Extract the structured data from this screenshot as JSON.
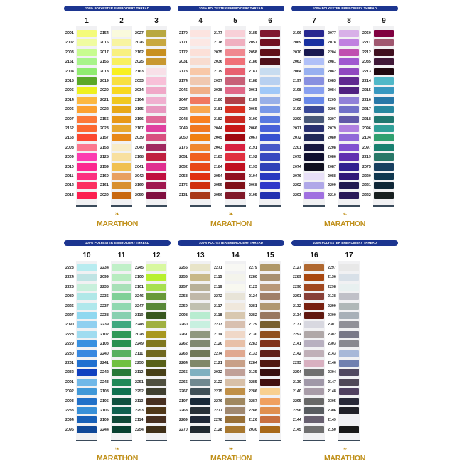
{
  "banner_text": "100% POLYESTER EMBROIDERY THREAD",
  "logo_text": "MARATHON",
  "cards": [
    {
      "columns": [
        {
          "number": "1",
          "codes": [
            "2001",
            "2002",
            "2003",
            "2151",
            "2004",
            "2015",
            "2005",
            "2014",
            "2006",
            "2007",
            "2152",
            "2153",
            "2008",
            "2009",
            "2010",
            "2011",
            "2012",
            "2013"
          ],
          "colors": [
            "#f4fb7a",
            "#f0fca0",
            "#c8fc90",
            "#a8f48a",
            "#90ec70",
            "#5aa828",
            "#eef020",
            "#fcb840",
            "#fca030",
            "#fc7838",
            "#fc6830",
            "#fc4830",
            "#fc7890",
            "#fc3cb0",
            "#fc2890",
            "#fc3080",
            "#fc3060",
            "#fc2050"
          ]
        },
        {
          "number": "2",
          "codes": [
            "2154",
            "2016",
            "2017",
            "2155",
            "2018",
            "2019",
            "2020",
            "2021",
            "2022",
            "2156",
            "2023",
            "2157",
            "2158",
            "2125",
            "2159",
            "2160",
            "2161",
            "2029"
          ],
          "colors": [
            "#fafadc",
            "#f8f4a0",
            "#f8f080",
            "#f8f060",
            "#f8f020",
            "#f8e040",
            "#f8d820",
            "#f0c820",
            "#e8a818",
            "#e89818",
            "#e8a830",
            "#e88818",
            "#f8ecc8",
            "#f8e0a0",
            "#f0c050",
            "#e8a060",
            "#d89030",
            "#c86810"
          ]
        },
        {
          "number": "3",
          "codes": [
            "2027",
            "2026",
            "2162",
            "2025",
            "2163",
            "2033",
            "2034",
            "2164",
            "2165",
            "2166",
            "2167",
            "2039",
            "2040",
            "2168",
            "2041",
            "2042",
            "2169",
            "2059"
          ],
          "colors": [
            "#b8a840",
            "#c8a840",
            "#c89020",
            "#c89830",
            "#f8e0e8",
            "#f8c0d8",
            "#f0a8c8",
            "#f0b0d0",
            "#e898c0",
            "#e06898",
            "#e040a0",
            "#d85080",
            "#a02860",
            "#c02040",
            "#e03090",
            "#c01040",
            "#a01850",
            "#801040"
          ]
        }
      ]
    },
    {
      "columns": [
        {
          "number": "4",
          "codes": [
            "2170",
            "2171",
            "2172",
            "2031",
            "2173",
            "2174",
            "2046",
            "2047",
            "2024",
            "2048",
            "2049",
            "2050",
            "2175",
            "2051",
            "2052",
            "2053",
            "2176",
            "2131"
          ],
          "colors": [
            "#fce4e0",
            "#fce8e4",
            "#fce0d8",
            "#f8dcd0",
            "#f8c8a8",
            "#f0c8b0",
            "#f0b088",
            "#f07860",
            "#f8a850",
            "#f88020",
            "#f07820",
            "#f08010",
            "#f08830",
            "#f06020",
            "#e84818",
            "#e03010",
            "#d03010",
            "#a83818"
          ]
        },
        {
          "number": "5",
          "codes": [
            "2177",
            "2178",
            "2035",
            "2036",
            "2179",
            "2037",
            "2038",
            "2180",
            "2181",
            "2182",
            "2044",
            "2045",
            "2043",
            "2183",
            "2184",
            "2054",
            "2055",
            "2056"
          ],
          "colors": [
            "#f8d0d8",
            "#f0b0c0",
            "#f08890",
            "#f07078",
            "#e86070",
            "#c86078",
            "#e06888",
            "#b04048",
            "#d83020",
            "#c82820",
            "#c81818",
            "#a00810",
            "#d82040",
            "#e03040",
            "#c01020",
            "#901020",
            "#801018",
            "#801828"
          ]
        },
        {
          "number": "6",
          "codes": [
            "2185",
            "2057",
            "2058",
            "2186",
            "2187",
            "2188",
            "2061",
            "2189",
            "2065",
            "2190",
            "2066",
            "2067",
            "2191",
            "2192",
            "2193",
            "2194",
            "2068",
            "2195"
          ],
          "colors": [
            "#801830",
            "#701020",
            "#601018",
            "#501018",
            "#c8dcf0",
            "#b8d0f0",
            "#a0c8f8",
            "#98b0e8",
            "#7898e8",
            "#5878e0",
            "#4860d8",
            "#3850d0",
            "#4858c8",
            "#3848c0",
            "#3040b8",
            "#2838c0",
            "#3038c8",
            "#2030b0"
          ]
        }
      ]
    },
    {
      "columns": [
        {
          "number": "7",
          "codes": [
            "2196",
            "2069",
            "2070",
            "2063",
            "2064",
            "2197",
            "2198",
            "2062",
            "2199",
            "2200",
            "2071",
            "2072",
            "2201",
            "2073",
            "2074",
            "2076",
            "2202",
            "2203"
          ],
          "colors": [
            "#282890",
            "#1830a0",
            "#181850",
            "#b0c0f8",
            "#98b0f0",
            "#8890e0",
            "#88a0f0",
            "#6888e8",
            "#384898",
            "#485878",
            "#283070",
            "#202858",
            "#181840",
            "#101030",
            "#101020",
            "#e8e0f8",
            "#b0a8e8",
            "#a070e0"
          ]
        },
        {
          "number": "8",
          "codes": [
            "2077",
            "2078",
            "2204",
            "2081",
            "2082",
            "2083",
            "2084",
            "2205",
            "2206",
            "2207",
            "2079",
            "2080",
            "2208",
            "2086",
            "2087",
            "2088",
            "2209",
            "2210"
          ],
          "colors": [
            "#d8b0e8",
            "#c080e0",
            "#c050b0",
            "#a058d0",
            "#9048c0",
            "#602890",
            "#502080",
            "#9080d8",
            "#7070c8",
            "#6058a8",
            "#b080e0",
            "#9068d8",
            "#8050d0",
            "#6030b0",
            "#302090",
            "#301878",
            "#201850",
            "#281858"
          ]
        },
        {
          "number": "9",
          "codes": [
            "2060",
            "2211",
            "2212",
            "2085",
            "2213",
            "2214",
            "2215",
            "2216",
            "2217",
            "2218",
            "2096",
            "2104",
            "2097",
            "2219",
            "2075",
            "2220",
            "2221",
            "2222"
          ],
          "colors": [
            "#800040",
            "#a05870",
            "#401020",
            "#401838",
            "#200810",
            "#50b8c8",
            "#3898c0",
            "#2878a8",
            "#2888a0",
            "#207870",
            "#30a098",
            "#30a070",
            "#188070",
            "#287868",
            "#184060",
            "#103850",
            "#102838",
            "#182020"
          ]
        }
      ]
    },
    {
      "columns": [
        {
          "number": "10",
          "codes": [
            "2223",
            "2224",
            "2225",
            "2089",
            "2226",
            "2227",
            "2090",
            "2228",
            "2229",
            "2230",
            "2231",
            "2232",
            "2091",
            "2092",
            "2093",
            "2233",
            "2094",
            "2095"
          ],
          "colors": [
            "#b8ecf0",
            "#c0e4e4",
            "#c8f0dc",
            "#b0e8e8",
            "#b0e8ec",
            "#90d8f0",
            "#90d0f0",
            "#a0dcf0",
            "#3890e0",
            "#3888e0",
            "#2070d0",
            "#1040c0",
            "#70b8e8",
            "#4098d8",
            "#2070c8",
            "#3890d8",
            "#1860b8",
            "#104898"
          ]
        },
        {
          "number": "11",
          "codes": [
            "2234",
            "2099",
            "2235",
            "2236",
            "2237",
            "2238",
            "2239",
            "2102",
            "2103",
            "2240",
            "2241",
            "2242",
            "2243",
            "2108",
            "2105",
            "2106",
            "2109",
            "2244"
          ],
          "colors": [
            "#c0f0c8",
            "#b8ecc0",
            "#a8e0b8",
            "#80d098",
            "#90d8b0",
            "#88d0b0",
            "#40a880",
            "#309858",
            "#289050",
            "#58b060",
            "#70c040",
            "#287838",
            "#208858",
            "#107050",
            "#105040",
            "#106050",
            "#104838",
            "#084030"
          ]
        },
        {
          "number": "12",
          "codes": [
            "2245",
            "2100",
            "2101",
            "2246",
            "2247",
            "2110",
            "2248",
            "2028",
            "2249",
            "2111",
            "2250",
            "2112",
            "2251",
            "2252",
            "2113",
            "2253",
            "2114",
            "2254"
          ],
          "colors": [
            "#d8f8a0",
            "#b8f030",
            "#a8e050",
            "#689838",
            "#588838",
            "#385820",
            "#a0b040",
            "#a89820",
            "#807820",
            "#706820",
            "#586018",
            "#484018",
            "#505040",
            "#404030",
            "#483020",
            "#503818",
            "#483020",
            "#403018"
          ]
        }
      ]
    },
    {
      "columns": [
        {
          "number": "13",
          "codes": [
            "2255",
            "2256",
            "2257",
            "2258",
            "2259",
            "2098",
            "2260",
            "2261",
            "2262",
            "2263",
            "2264",
            "2265",
            "2266",
            "2267",
            "2107",
            "2268",
            "2269",
            "2270"
          ],
          "colors": [
            "#e8e4c8",
            "#c8b888",
            "#b8b098",
            "#c0b8a8",
            "#c0c0b0",
            "#b8ecd0",
            "#c8f0e0",
            "#909880",
            "#808870",
            "#707858",
            "#808868",
            "#80b0c0",
            "#708890",
            "#405058",
            "#182838",
            "#283038",
            "#202838",
            "#202830"
          ]
        },
        {
          "number": "14",
          "codes": [
            "2271",
            "2115",
            "2116",
            "2272",
            "2117",
            "2118",
            "2273",
            "2119",
            "2120",
            "2274",
            "2121",
            "2032",
            "2122",
            "2275",
            "2276",
            "2277",
            "2278",
            "2128"
          ],
          "colors": [
            "#f8f8f4",
            "#f4f4ec",
            "#f8f8f0",
            "#e8e4d8",
            "#f0e8dc",
            "#d8c8b0",
            "#d8c0b0",
            "#f0d8c8",
            "#e8c0a8",
            "#e0a890",
            "#c8a088",
            "#c0a098",
            "#d8c0a8",
            "#c09048",
            "#a08860",
            "#a08870",
            "#987038",
            "#a87830"
          ]
        },
        {
          "number": "15",
          "codes": [
            "2279",
            "2280",
            "2123",
            "2124",
            "2281",
            "2282",
            "2129",
            "2130",
            "2283",
            "2133",
            "2284",
            "2135",
            "2285",
            "2286",
            "2287",
            "2288",
            "2126",
            "2030"
          ],
          "colors": [
            "#b09868",
            "#a89070",
            "#b89878",
            "#a08068",
            "#b09870",
            "#987860",
            "#786030",
            "#905020",
            "#803018",
            "#602018",
            "#501810",
            "#381010",
            "#401010",
            "#f8d090",
            "#f0a060",
            "#e09050",
            "#c87040",
            "#a86818"
          ]
        }
      ]
    },
    {
      "columns": [
        {
          "number": "16",
          "codes": [
            "2127",
            "2289",
            "2290",
            "2291",
            "2132",
            "2134",
            "2137",
            "2292",
            "2141",
            "2142",
            "2293",
            "2294",
            "2139",
            "2140",
            "2295",
            "2296",
            "2144",
            "2145"
          ],
          "colors": [
            "#b06830",
            "#a84810",
            "#a04820",
            "#884038",
            "#782010",
            "#601810",
            "#d8d8e0",
            "#b0a8a8",
            "#b8b0c0",
            "#c0b0b8",
            "#d8b0c0",
            "#707070",
            "#a098a8",
            "#a89ca8",
            "#686868",
            "#585c60",
            "#686070",
            "#707070"
          ]
        },
        {
          "number": "17",
          "codes": [
            "2297",
            "2136",
            "2298",
            "2138",
            "2299",
            "2300",
            "2301",
            "2302",
            "2303",
            "2143",
            "2146",
            "2304",
            "2147",
            "2148",
            "2305",
            "2306",
            "2149",
            "2150"
          ],
          "colors": [
            "#e8e8e8",
            "#d8e0e8",
            "#e8f0f0",
            "#c0c0c8",
            "#b0b8b8",
            "#a8b0b8",
            "#909098",
            "#787888",
            "#888890",
            "#a8b8d8",
            "#7080b0",
            "#504860",
            "#504858",
            "#504060",
            "#282838",
            "#202028",
            "#f0f0f4",
            "#181818"
          ]
        }
      ]
    }
  ]
}
